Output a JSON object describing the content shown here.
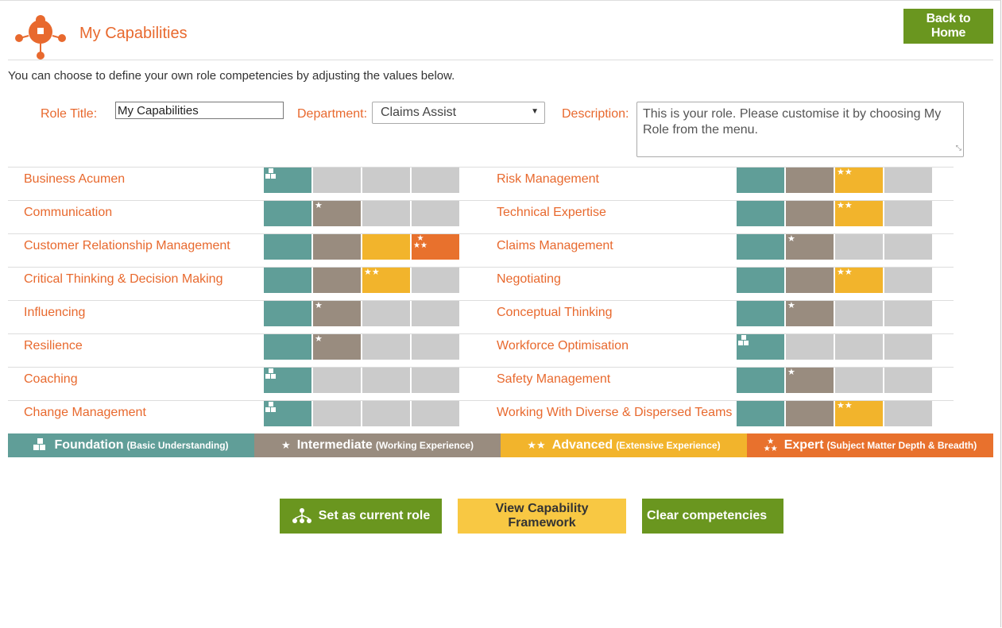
{
  "header": {
    "title": "My Capabilities",
    "back_label": "Back to Home",
    "logo_icon": "people-network-icon"
  },
  "intro": "You can choose to define your own role competencies by adjusting the values below.",
  "form": {
    "role_title_label": "Role Title:",
    "role_title_value": "My Capabilities",
    "department_label": "Department:",
    "department_value": "Claims Assist",
    "description_label": "Description:",
    "description_value": "This is your role. Please customise it by choosing My Role from the menu."
  },
  "capabilities_left": [
    {
      "name": "Business Acumen",
      "level": 1
    },
    {
      "name": "Communication",
      "level": 2
    },
    {
      "name": "Customer Relationship Management",
      "level": 4
    },
    {
      "name": "Critical Thinking & Decision Making",
      "level": 3
    },
    {
      "name": "Influencing",
      "level": 2
    },
    {
      "name": "Resilience",
      "level": 2
    },
    {
      "name": "Coaching",
      "level": 1
    },
    {
      "name": "Change Management",
      "level": 1
    }
  ],
  "capabilities_right": [
    {
      "name": "Risk Management",
      "level": 3
    },
    {
      "name": "Technical Expertise",
      "level": 3
    },
    {
      "name": "Claims Management",
      "level": 2
    },
    {
      "name": "Negotiating",
      "level": 3
    },
    {
      "name": "Conceptual Thinking",
      "level": 2
    },
    {
      "name": "Workforce Optimisation",
      "level": 1
    },
    {
      "name": "Safety Management",
      "level": 2
    },
    {
      "name": "Working With Diverse & Dispersed Teams",
      "level": 3
    }
  ],
  "legend": [
    {
      "title": "Foundation",
      "note": "(Basic Understanding)",
      "color": "#609e98",
      "icon": "blocks-icon"
    },
    {
      "title": "Intermediate",
      "note": "(Working Experience)",
      "color": "#998c7f",
      "icon": "star-icon"
    },
    {
      "title": "Advanced",
      "note": "(Extensive Experience)",
      "color": "#f2b42c",
      "icon": "two-stars-icon"
    },
    {
      "title": "Expert",
      "note": "(Subject Matter Depth & Breadth)",
      "color": "#e8712d",
      "icon": "three-stars-icon"
    }
  ],
  "buttons": {
    "set_current": "Set as current role",
    "view_framework": "View Capability Framework",
    "clear": "Clear competencies"
  },
  "colors": {
    "accent": "#e8692e",
    "green": "#6a961f",
    "yellow": "#f8c843",
    "empty": "#cbcbcb"
  }
}
